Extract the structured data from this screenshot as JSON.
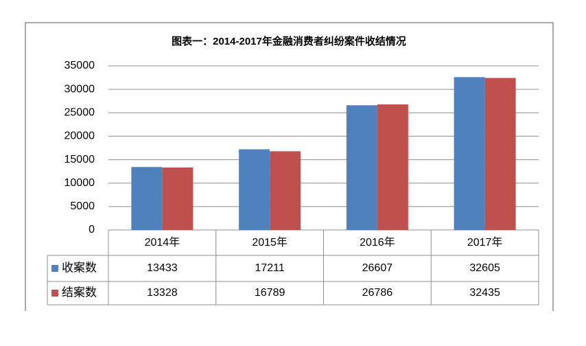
{
  "chart_data": {
    "type": "bar",
    "title": "图表一：2014-2017年金融消费者纠纷案件收结情况",
    "categories": [
      "2014年",
      "2015年",
      "2016年",
      "2017年"
    ],
    "series": [
      {
        "name": "收案数",
        "color": "#4f81bd",
        "values": [
          13433,
          17211,
          26607,
          32605
        ]
      },
      {
        "name": "结案数",
        "color": "#c0504d",
        "values": [
          13328,
          16789,
          26786,
          32435
        ]
      }
    ],
    "ylim": [
      0,
      35000
    ],
    "yticks": [
      0,
      5000,
      10000,
      15000,
      20000,
      25000,
      30000,
      35000
    ],
    "grid": true
  }
}
